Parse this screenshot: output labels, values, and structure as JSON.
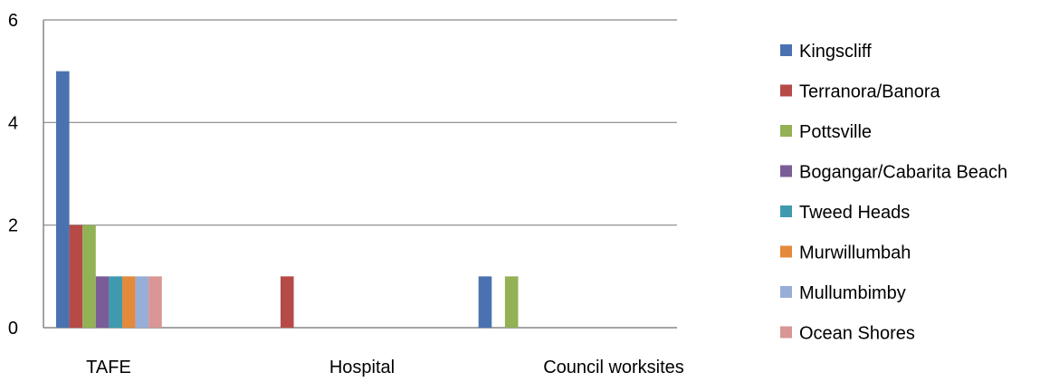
{
  "chart_data": {
    "type": "bar",
    "title": "",
    "xlabel": "",
    "ylabel": "",
    "categories": [
      "TAFE",
      "Hospital",
      "Council worksites"
    ],
    "ylim": [
      0,
      6
    ],
    "yticks": [
      "0",
      "2",
      "4",
      "6"
    ],
    "grid": true,
    "legend_position": "right",
    "series": [
      {
        "name": "Kingscliff",
        "color": "#4a72b0",
        "values": [
          5,
          0,
          1
        ]
      },
      {
        "name": "Terranora/Banora",
        "color": "#b54a47",
        "values": [
          2,
          1,
          0
        ]
      },
      {
        "name": "Pottsville",
        "color": "#93b155",
        "values": [
          2,
          0,
          1
        ]
      },
      {
        "name": "Bogangar/Cabarita Beach",
        "color": "#7a5c98",
        "values": [
          1,
          0,
          0
        ]
      },
      {
        "name": "Tweed Heads",
        "color": "#3f9ab0",
        "values": [
          1,
          0,
          0
        ]
      },
      {
        "name": "Murwillumbah",
        "color": "#e38a3c",
        "values": [
          1,
          0,
          0
        ]
      },
      {
        "name": "Mullumbimby",
        "color": "#98aed8",
        "values": [
          1,
          0,
          0
        ]
      },
      {
        "name": "Ocean Shores",
        "color": "#d99694",
        "values": [
          1,
          0,
          0
        ]
      }
    ]
  }
}
